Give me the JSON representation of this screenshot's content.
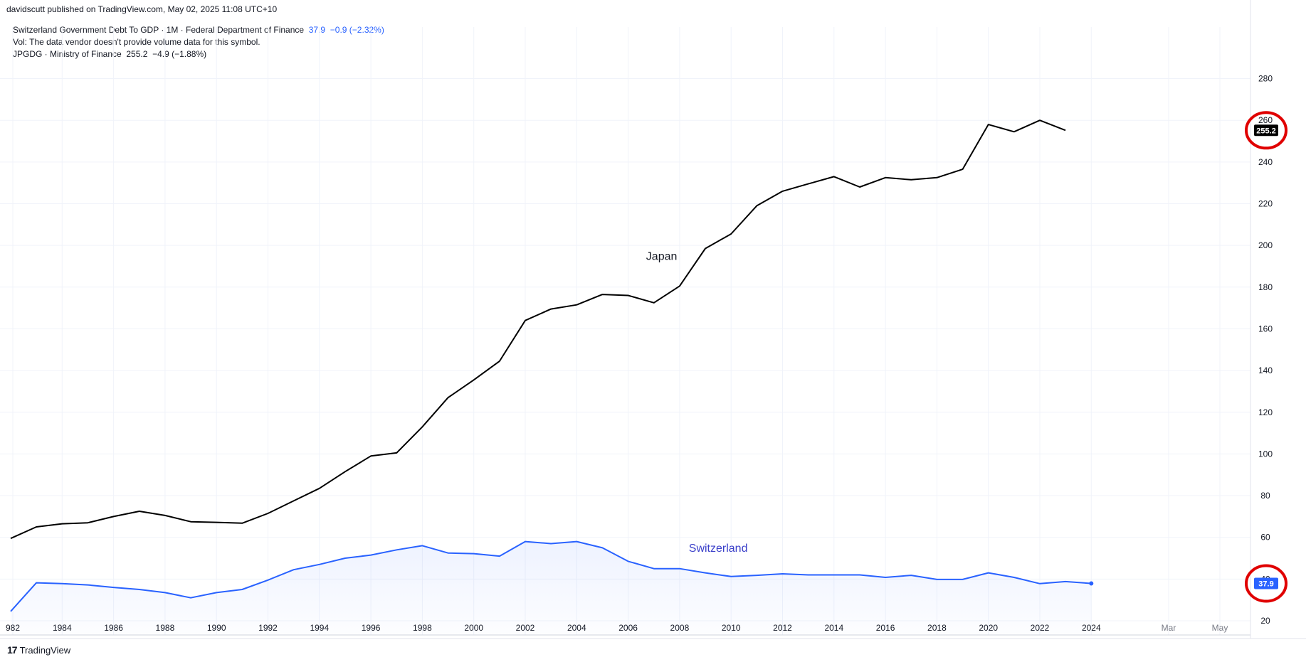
{
  "header": {
    "published": "davidscutt published on TradingView.com, May 02, 2025 11:08 UTC+10"
  },
  "legend": {
    "switzerland": {
      "title": "Switzerland Government Debt To GDP · 1M · Federal Department of Finance",
      "value": "37.9",
      "change": "−0.9 (−2.32%)"
    },
    "vol": "Vol: The data vendor doesn't provide volume data for this symbol.",
    "japan": {
      "title": "JPGDG · Ministry of Finance",
      "value": "255.2",
      "change": "−4.9 (−1.88%)"
    }
  },
  "footer": {
    "brand": "TradingView",
    "logo": "17"
  },
  "colors": {
    "japan": "#000000",
    "switzerland": "#2962ff",
    "highlight": "#e00000"
  },
  "chart_data": {
    "type": "line",
    "x_ticks": [
      "982",
      "1984",
      "1986",
      "1988",
      "1990",
      "1992",
      "1994",
      "1996",
      "1998",
      "2000",
      "2002",
      "2004",
      "2006",
      "2008",
      "2010",
      "2012",
      "2014",
      "2016",
      "2018",
      "2020",
      "2022",
      "2024",
      "Mar",
      "May"
    ],
    "y_ticks": [
      20,
      40,
      60,
      80,
      100,
      120,
      140,
      160,
      180,
      200,
      220,
      240,
      260,
      280
    ],
    "ylim": [
      7,
      287
    ],
    "annotations": [
      {
        "text": "Japan",
        "x": 2007.3,
        "y": 193
      },
      {
        "text": "Switzerland",
        "x": 2009.5,
        "y": 53
      }
    ],
    "series": [
      {
        "name": "Japan",
        "x": [
          1982,
          1983,
          1984,
          1985,
          1986,
          1987,
          1988,
          1989,
          1990,
          1991,
          1992,
          1993,
          1994,
          1995,
          1996,
          1997,
          1998,
          1999,
          2000,
          2001,
          2002,
          2003,
          2004,
          2005,
          2006,
          2007,
          2008,
          2009,
          2010,
          2011,
          2012,
          2013,
          2014,
          2015,
          2016,
          2017,
          2018,
          2019,
          2020,
          2021,
          2022,
          2023
        ],
        "values": [
          59.5,
          65,
          66.5,
          67,
          70,
          72.5,
          70.5,
          67.5,
          67.2,
          66.8,
          71.5,
          77.5,
          83.5,
          91.5,
          99,
          100.5,
          113,
          127,
          135.5,
          144.5,
          164,
          169.5,
          171.5,
          176.5,
          176,
          172.5,
          180.5,
          198.5,
          205.5,
          219,
          226,
          229.5,
          233,
          228,
          232.5,
          231.5,
          232.5,
          236.5,
          258,
          254.5,
          260,
          255.2
        ],
        "last_label": "255.2"
      },
      {
        "name": "Switzerland",
        "x": [
          1982,
          1983,
          1984,
          1985,
          1986,
          1987,
          1988,
          1989,
          1990,
          1991,
          1992,
          1993,
          1994,
          1995,
          1996,
          1997,
          1998,
          1999,
          2000,
          2001,
          2002,
          2003,
          2004,
          2005,
          2006,
          2007,
          2008,
          2009,
          2010,
          2011,
          2012,
          2013,
          2014,
          2015,
          2016,
          2017,
          2018,
          2019,
          2020,
          2021,
          2022,
          2023,
          2024
        ],
        "values": [
          24.5,
          38.2,
          37.8,
          37.2,
          36,
          35,
          33.5,
          31,
          33.5,
          35,
          39.5,
          44.5,
          47,
          50,
          51.5,
          54,
          56,
          52.5,
          52.2,
          51,
          58,
          57,
          58,
          55,
          48.5,
          45,
          45,
          43,
          41.2,
          41.8,
          42.5,
          42,
          42,
          42,
          40.8,
          41.8,
          39.8,
          39.8,
          43,
          40.8,
          37.8,
          38.8,
          37.9
        ],
        "last_label": "37.9"
      }
    ]
  }
}
